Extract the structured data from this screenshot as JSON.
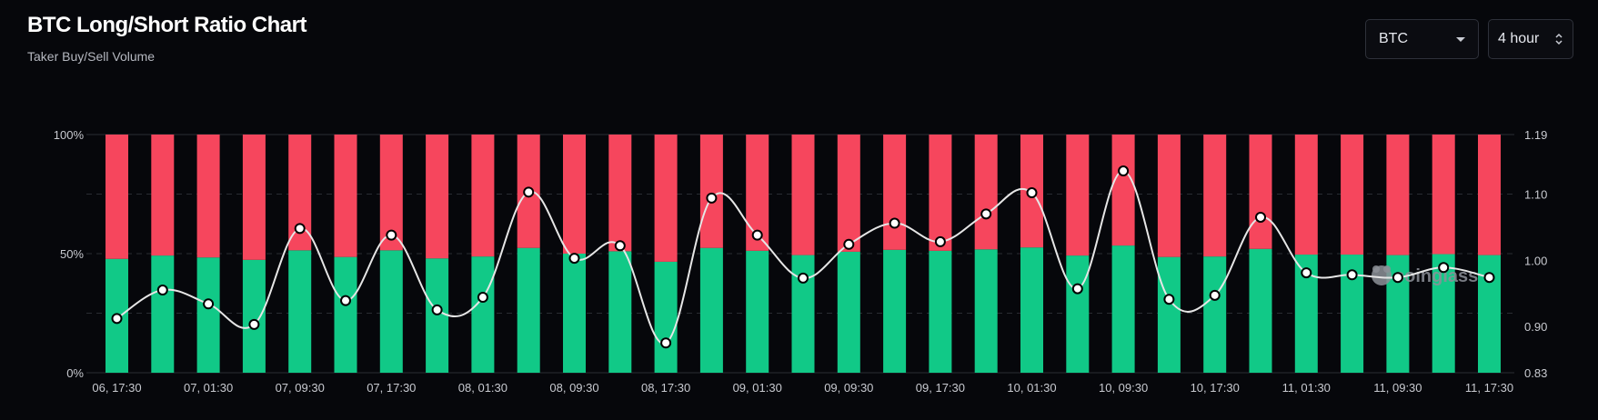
{
  "header": {
    "title": "BTC Long/Short Ratio Chart",
    "subtitle": "Taker Buy/Sell Volume"
  },
  "controls": {
    "coin_label": "BTC",
    "interval_label": "4 hour"
  },
  "watermark": {
    "text": "coinglass"
  },
  "colors": {
    "long": "#11c987",
    "short": "#f6465d",
    "ratio_line": "#e6e6e6",
    "background": "#06070b",
    "grid": "#2a2c33"
  },
  "chart_data": {
    "type": "bar",
    "stacked": true,
    "categories": [
      "06, 17:30",
      "06, 21:30",
      "07, 01:30",
      "07, 05:30",
      "07, 09:30",
      "07, 13:30",
      "07, 17:30",
      "07, 21:30",
      "08, 01:30",
      "08, 05:30",
      "08, 09:30",
      "08, 13:30",
      "08, 17:30",
      "08, 21:30",
      "09, 01:30",
      "09, 05:30",
      "09, 09:30",
      "09, 13:30",
      "09, 17:30",
      "09, 21:30",
      "10, 01:30",
      "10, 05:30",
      "10, 09:30",
      "10, 13:30",
      "10, 17:30",
      "10, 21:30",
      "11, 01:30",
      "11, 05:30",
      "11, 09:30",
      "11, 13:30",
      "11, 17:30"
    ],
    "xtick_labels": [
      "06, 17:30",
      "07, 01:30",
      "07, 09:30",
      "07, 17:30",
      "08, 01:30",
      "08, 09:30",
      "08, 17:30",
      "09, 01:30",
      "09, 09:30",
      "09, 17:30",
      "10, 01:30",
      "10, 09:30",
      "10, 17:30",
      "11, 01:30",
      "11, 09:30",
      "11, 17:30"
    ],
    "series": [
      {
        "values": [
          47.8,
          49.2,
          48.4,
          47.4,
          51.4,
          48.6,
          51.4,
          48.0,
          48.8,
          52.4,
          50.0,
          51.0,
          46.6,
          52.4,
          51.2,
          49.4,
          50.8,
          51.6,
          51.2,
          51.8,
          52.6,
          49.2,
          53.4,
          48.6,
          48.8,
          52.0,
          49.6,
          49.6,
          49.4,
          49.8,
          49.4
        ]
      },
      {
        "values": [
          52.2,
          50.8,
          51.6,
          52.6,
          48.6,
          51.4,
          48.6,
          52.0,
          51.2,
          47.6,
          50.0,
          49.0,
          53.4,
          47.6,
          48.8,
          50.6,
          49.2,
          48.4,
          48.8,
          48.2,
          47.4,
          50.8,
          46.6,
          51.4,
          51.2,
          48.0,
          50.4,
          50.4,
          50.6,
          50.2,
          50.6
        ]
      },
      {
        "axis": "right",
        "type": "line",
        "values": [
          0.912,
          0.955,
          0.934,
          0.903,
          1.048,
          0.939,
          1.038,
          0.925,
          0.944,
          1.103,
          1.003,
          1.022,
          0.875,
          1.094,
          1.038,
          0.973,
          1.024,
          1.056,
          1.028,
          1.07,
          1.102,
          0.957,
          1.135,
          0.941,
          0.947,
          1.065,
          0.981,
          0.978,
          0.974,
          0.989,
          0.974
        ]
      }
    ],
    "ylim_left": [
      0,
      100
    ],
    "yticks_left": [
      "0%",
      "50%",
      "100%"
    ],
    "ylim_right": [
      0.83,
      1.19
    ],
    "yticks_right": [
      "0.83",
      "0.90",
      "1.00",
      "1.10",
      "1.19"
    ],
    "grid": true
  }
}
